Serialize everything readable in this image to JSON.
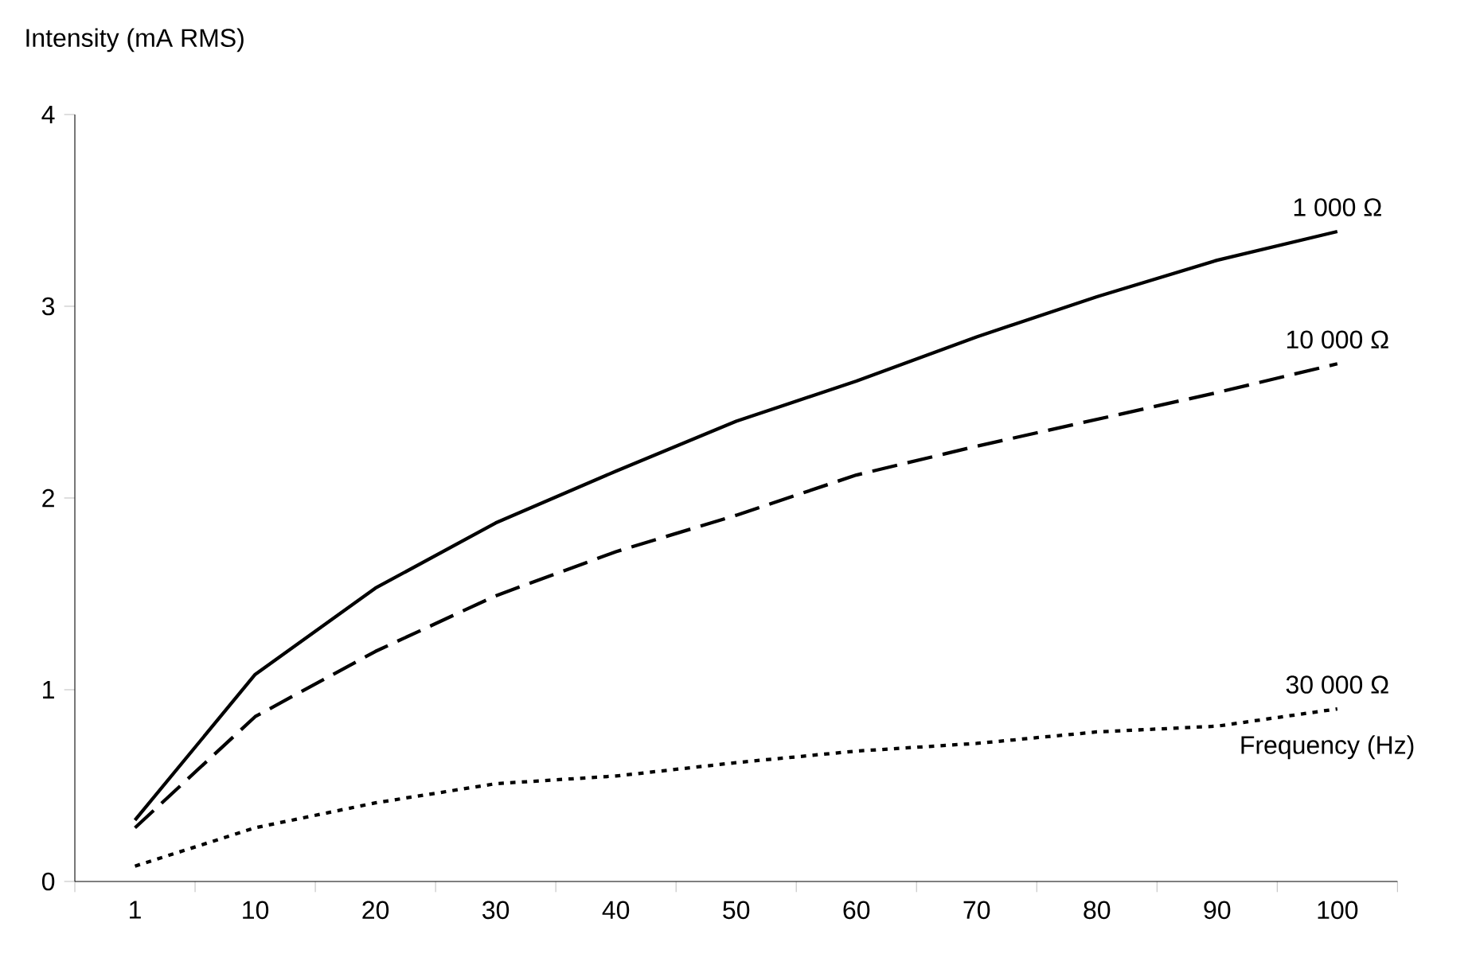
{
  "chart_data": {
    "type": "line",
    "xlabel": "Frequency (Hz)",
    "ylabel": "Intensity (mA RMS)",
    "categories": [
      "1",
      "10",
      "20",
      "30",
      "40",
      "50",
      "60",
      "70",
      "80",
      "90",
      "100"
    ],
    "series": [
      {
        "name": "1 000 Ω",
        "color": "#000000",
        "line_style": "solid",
        "values": [
          0.32,
          1.08,
          1.53,
          1.87,
          2.14,
          2.4,
          2.61,
          2.84,
          3.05,
          3.24,
          3.39
        ]
      },
      {
        "name": "10 000 Ω",
        "color": "#000000",
        "line_style": "dashed",
        "values": [
          0.28,
          0.86,
          1.2,
          1.49,
          1.72,
          1.91,
          2.12,
          2.27,
          2.41,
          2.55,
          2.7
        ]
      },
      {
        "name": "30 000 Ω",
        "color": "#000000",
        "line_style": "dotted",
        "values": [
          0.08,
          0.28,
          0.41,
          0.51,
          0.55,
          0.62,
          0.68,
          0.72,
          0.78,
          0.81,
          0.9
        ]
      }
    ],
    "ylim": [
      0,
      4
    ],
    "yticks": [
      0,
      1,
      2,
      3,
      4
    ],
    "grid": false,
    "marker": "none"
  }
}
